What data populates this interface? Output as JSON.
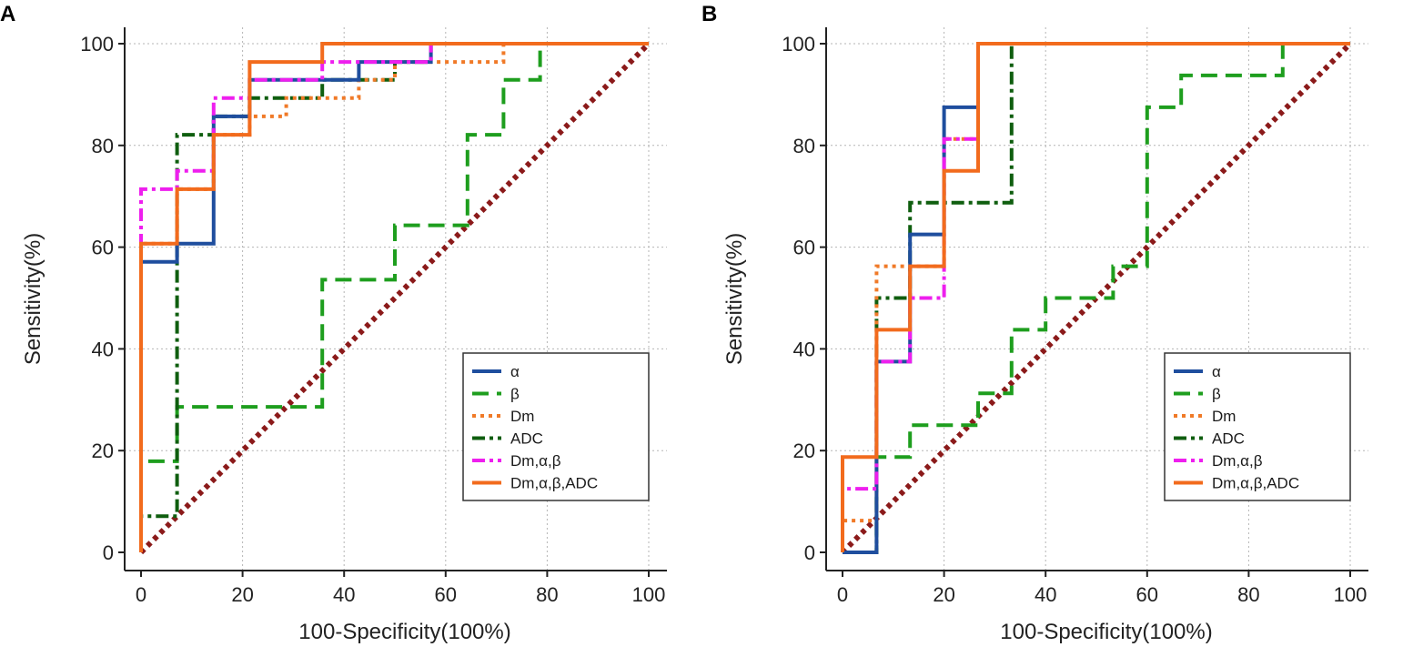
{
  "chart_data": [
    {
      "type": "line",
      "panel_label": "A",
      "title": "",
      "xlabel": "100-Specificity(100%)",
      "ylabel": "Sensitivity(%)",
      "xlim": [
        0,
        100
      ],
      "ylim": [
        0,
        100
      ],
      "xticks": [
        "0",
        "20",
        "40",
        "60",
        "80",
        "100"
      ],
      "yticks": [
        "0",
        "20",
        "40",
        "60",
        "80",
        "100"
      ],
      "grid": true,
      "legend_position": "bottom-right",
      "series": [
        {
          "name": "α",
          "color": "#1f4e9e",
          "dash": "solid",
          "x": [
            0,
            0,
            7.1,
            7.1,
            14.3,
            14.3,
            21.4,
            21.4,
            42.9,
            42.9,
            57.1,
            57.1,
            100
          ],
          "y": [
            0,
            57.1,
            57.1,
            60.7,
            60.7,
            85.7,
            85.7,
            92.9,
            92.9,
            96.4,
            96.4,
            100,
            100
          ]
        },
        {
          "name": "β",
          "color": "#1e9e1e",
          "dash": "dashed",
          "x": [
            0,
            0,
            7.1,
            7.1,
            35.7,
            35.7,
            50,
            50,
            64.3,
            64.3,
            71.4,
            71.4,
            78.6,
            78.6,
            100
          ],
          "y": [
            0,
            17.9,
            17.9,
            28.6,
            28.6,
            53.6,
            53.6,
            64.3,
            64.3,
            82.1,
            82.1,
            92.9,
            92.9,
            100,
            100
          ]
        },
        {
          "name": "Dm",
          "color": "#f07a28",
          "dash": "dotted",
          "x": [
            0,
            0,
            7.1,
            7.1,
            14.3,
            14.3,
            21.4,
            21.4,
            28.6,
            28.6,
            35.7,
            35.7,
            42.9,
            42.9,
            50,
            50,
            71.4,
            71.4,
            100
          ],
          "y": [
            0,
            60.7,
            60.7,
            71.4,
            71.4,
            82.1,
            82.1,
            85.7,
            85.7,
            89.3,
            89.3,
            89.3,
            89.3,
            92.9,
            92.9,
            96.4,
            96.4,
            100,
            100
          ]
        },
        {
          "name": "ADC",
          "color": "#0f5e0f",
          "dash": "dashdot",
          "x": [
            0,
            0,
            7.1,
            7.1,
            14.3,
            14.3,
            21.4,
            21.4,
            35.7,
            35.7,
            50,
            50,
            57.1,
            57.1,
            100
          ],
          "y": [
            0,
            7.1,
            7.1,
            82.1,
            82.1,
            85.7,
            85.7,
            89.3,
            89.3,
            92.9,
            92.9,
            96.4,
            96.4,
            100,
            100
          ]
        },
        {
          "name": "Dm,α,β",
          "color": "#ee1fee",
          "dash": "dashdot",
          "x": [
            0,
            0,
            7.1,
            7.1,
            14.3,
            14.3,
            21.4,
            21.4,
            35.7,
            35.7,
            57.1,
            57.1,
            100
          ],
          "y": [
            0,
            71.4,
            71.4,
            75,
            75,
            89.3,
            89.3,
            92.9,
            92.9,
            96.4,
            96.4,
            100,
            100
          ]
        },
        {
          "name": "Dm,α,β,ADC",
          "color": "#f26b1d",
          "dash": "solid",
          "x": [
            0,
            0,
            7.1,
            7.1,
            14.3,
            14.3,
            21.4,
            21.4,
            35.7,
            35.7,
            100
          ],
          "y": [
            0,
            60.7,
            60.7,
            71.4,
            71.4,
            82.1,
            82.1,
            96.4,
            96.4,
            100,
            100
          ]
        },
        {
          "name": "reference",
          "color": "#8b1a1a",
          "dash": "dotted-thick",
          "in_legend": false,
          "x": [
            0,
            100
          ],
          "y": [
            0,
            100
          ]
        }
      ]
    },
    {
      "type": "line",
      "panel_label": "B",
      "title": "",
      "xlabel": "100-Specificity(100%)",
      "ylabel": "Sensitivity(%)",
      "xlim": [
        0,
        100
      ],
      "ylim": [
        0,
        100
      ],
      "xticks": [
        "0",
        "20",
        "40",
        "60",
        "80",
        "100"
      ],
      "yticks": [
        "0",
        "20",
        "40",
        "60",
        "80",
        "100"
      ],
      "grid": true,
      "legend_position": "bottom-right",
      "series": [
        {
          "name": "α",
          "color": "#1f4e9e",
          "dash": "solid",
          "x": [
            0,
            6.7,
            6.7,
            13.3,
            13.3,
            20,
            20,
            26.7,
            26.7,
            100
          ],
          "y": [
            0,
            0,
            37.5,
            37.5,
            62.5,
            62.5,
            87.5,
            87.5,
            100,
            100
          ]
        },
        {
          "name": "β",
          "color": "#1e9e1e",
          "dash": "dashed",
          "x": [
            0,
            6.7,
            6.7,
            13.3,
            13.3,
            26.7,
            26.7,
            33.3,
            33.3,
            40,
            40,
            53.3,
            53.3,
            60,
            60,
            66.7,
            66.7,
            86.7,
            86.7,
            100
          ],
          "y": [
            0,
            0,
            18.75,
            18.75,
            25,
            25,
            31.25,
            31.25,
            43.75,
            43.75,
            50,
            50,
            56.25,
            56.25,
            87.5,
            87.5,
            93.75,
            93.75,
            100,
            100
          ]
        },
        {
          "name": "Dm",
          "color": "#f07a28",
          "dash": "dotted",
          "x": [
            0,
            0,
            6.7,
            6.7,
            20,
            20,
            26.7,
            26.7,
            100
          ],
          "y": [
            0,
            6.25,
            6.25,
            56.25,
            56.25,
            81.25,
            81.25,
            100,
            100
          ]
        },
        {
          "name": "ADC",
          "color": "#0f5e0f",
          "dash": "dashdot",
          "x": [
            0,
            6.7,
            6.7,
            13.3,
            13.3,
            33.3,
            33.3,
            100
          ],
          "y": [
            0,
            0,
            50,
            50,
            68.75,
            68.75,
            100,
            100
          ]
        },
        {
          "name": "Dm,α,β",
          "color": "#ee1fee",
          "dash": "dashdot",
          "x": [
            0,
            0,
            6.7,
            6.7,
            13.3,
            13.3,
            20,
            20,
            26.7,
            26.7,
            100
          ],
          "y": [
            0,
            12.5,
            12.5,
            37.5,
            37.5,
            50,
            50,
            81.25,
            81.25,
            100,
            100
          ]
        },
        {
          "name": "Dm,α,β,ADC",
          "color": "#f26b1d",
          "dash": "solid",
          "x": [
            0,
            0,
            6.7,
            6.7,
            13.3,
            13.3,
            20,
            20,
            26.7,
            26.7,
            100
          ],
          "y": [
            0,
            18.75,
            18.75,
            43.75,
            43.75,
            56.25,
            56.25,
            75,
            75,
            100,
            100
          ]
        },
        {
          "name": "reference",
          "color": "#8b1a1a",
          "dash": "dotted-thick",
          "in_legend": false,
          "x": [
            0,
            100
          ],
          "y": [
            0,
            100
          ]
        }
      ]
    }
  ]
}
